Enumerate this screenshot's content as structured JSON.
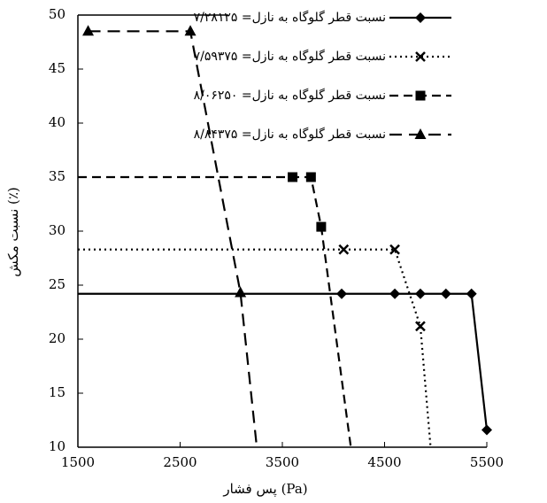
{
  "chart_data": {
    "type": "line",
    "x_label": "پس فشار (Pa)",
    "y_label": "نسبت مکش (٪)",
    "xlim": [
      1500,
      5500
    ],
    "xticks": [
      1500,
      2500,
      3500,
      4500,
      5500
    ],
    "ylim": [
      10,
      50
    ],
    "yticks": [
      10,
      15,
      20,
      25,
      30,
      35,
      40,
      45,
      50
    ],
    "series": [
      {
        "name": "نسبت قطر گلوگاه به نازل= ۷/۲۸۱۲۵",
        "color": "#000000",
        "dash": "solid",
        "marker": "diamond",
        "x": [
          1500,
          4080,
          4600,
          4850,
          5100,
          5350,
          5500
        ],
        "values": [
          24.2,
          24.2,
          24.2,
          24.2,
          24.2,
          24.2,
          11.6
        ],
        "show_marker": [
          false,
          true,
          true,
          true,
          true,
          true,
          true
        ]
      },
      {
        "name": "نسبت قطر گلوگاه به نازل= ۷/۵۹۳۷۵",
        "color": "#000000",
        "dash": "dotted",
        "marker": "x",
        "x": [
          1500,
          4100,
          4600,
          4850,
          4950
        ],
        "values": [
          28.3,
          28.3,
          28.3,
          21.2,
          10
        ],
        "show_marker": [
          false,
          true,
          true,
          true,
          false
        ]
      },
      {
        "name": "نسبت قطر گلوگاه به نازل= ۸/۰۶۲۵۰",
        "color": "#000000",
        "dash": "dashed",
        "marker": "square",
        "x": [
          1500,
          3600,
          3780,
          3880,
          4170
        ],
        "values": [
          35,
          35,
          35,
          30.4,
          10
        ],
        "show_marker": [
          false,
          true,
          true,
          true,
          false
        ]
      },
      {
        "name": "نسبت قطر گلوگاه به نازل= ۸/۸۴۳۷۵",
        "color": "#000000",
        "dash": "long-dashed",
        "marker": "triangle",
        "x": [
          1600,
          2600,
          3090,
          3250
        ],
        "values": [
          48.5,
          48.5,
          24.3,
          10
        ],
        "show_marker": [
          true,
          true,
          true,
          false
        ]
      }
    ]
  }
}
